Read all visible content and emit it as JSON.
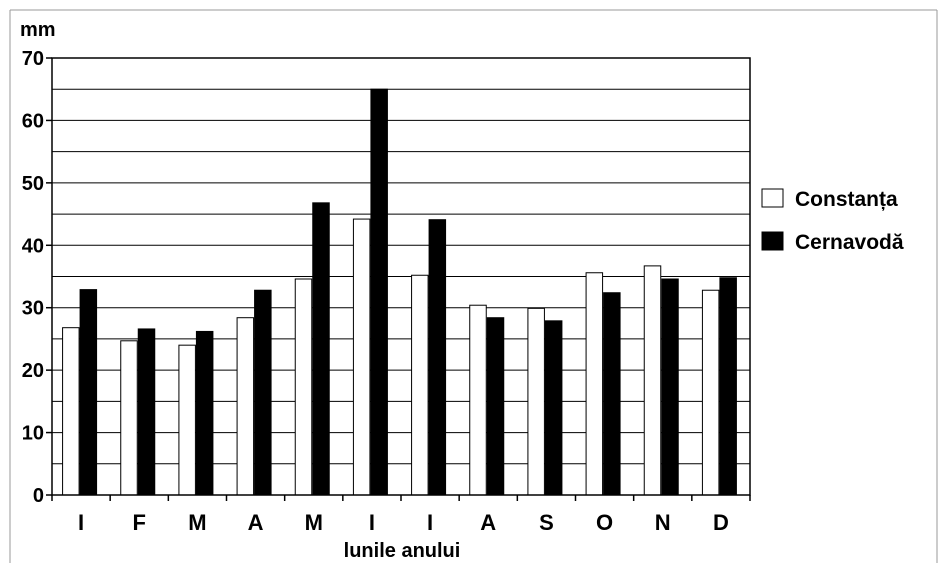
{
  "chart_data": {
    "type": "bar",
    "ylabel": "mm",
    "xlabel": "lunile anului",
    "ylim": [
      0,
      70
    ],
    "yticks": [
      0,
      10,
      20,
      30,
      40,
      50,
      60,
      70
    ],
    "grid_step": 5,
    "grid": true,
    "legend_position": "right",
    "categories": [
      "I",
      "F",
      "M",
      "A",
      "M",
      "I",
      "I",
      "A",
      "S",
      "O",
      "N",
      "D"
    ],
    "series": [
      {
        "name": "Constanța",
        "color": "#ffffff",
        "values": [
          26.8,
          24.7,
          24.0,
          28.4,
          34.6,
          44.2,
          35.2,
          30.4,
          29.9,
          35.6,
          36.7,
          32.8
        ]
      },
      {
        "name": "Cernavodă",
        "color": "#000000",
        "values": [
          32.9,
          26.6,
          26.2,
          32.8,
          46.8,
          65.0,
          44.1,
          28.4,
          27.9,
          32.4,
          34.6,
          34.8
        ]
      }
    ]
  }
}
